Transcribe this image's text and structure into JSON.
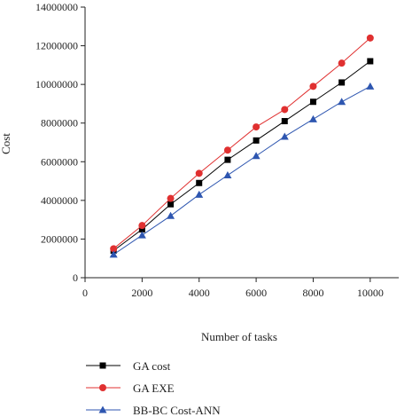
{
  "chart_data": {
    "type": "line",
    "title": "",
    "xlabel": "Number of tasks",
    "ylabel": "Cost",
    "xlim": [
      0,
      11000
    ],
    "ylim": [
      0,
      14000000
    ],
    "x_ticks": [
      0,
      2000,
      4000,
      6000,
      8000,
      10000
    ],
    "x_tick_labels": [
      "0",
      "2000",
      "4000",
      "6000",
      "8000",
      "10000"
    ],
    "y_ticks": [
      0,
      2000000,
      4000000,
      6000000,
      8000000,
      10000000,
      12000000,
      14000000
    ],
    "y_tick_labels": [
      "0",
      "2000000",
      "4000000",
      "6000000",
      "8000000",
      "10000000",
      "12000000",
      "14000000"
    ],
    "grid": false,
    "legend_position": "bottom",
    "x": [
      1000,
      2000,
      3000,
      4000,
      5000,
      6000,
      7000,
      8000,
      9000,
      10000
    ],
    "series": [
      {
        "name": "GA cost",
        "color": "#000000",
        "marker": "square",
        "values": [
          1400000,
          2500000,
          3800000,
          4900000,
          6100000,
          7100000,
          8100000,
          9100000,
          10100000,
          11200000
        ]
      },
      {
        "name": "GA EXE",
        "color": "#e03030",
        "marker": "circle",
        "values": [
          1500000,
          2700000,
          4100000,
          5400000,
          6600000,
          7800000,
          8700000,
          9900000,
          11100000,
          12400000
        ]
      },
      {
        "name": "BB-BC Cost-ANN",
        "color": "#2e56b0",
        "marker": "triangle",
        "values": [
          1200000,
          2200000,
          3200000,
          4300000,
          5300000,
          6300000,
          7300000,
          8200000,
          9100000,
          9900000
        ]
      }
    ]
  }
}
